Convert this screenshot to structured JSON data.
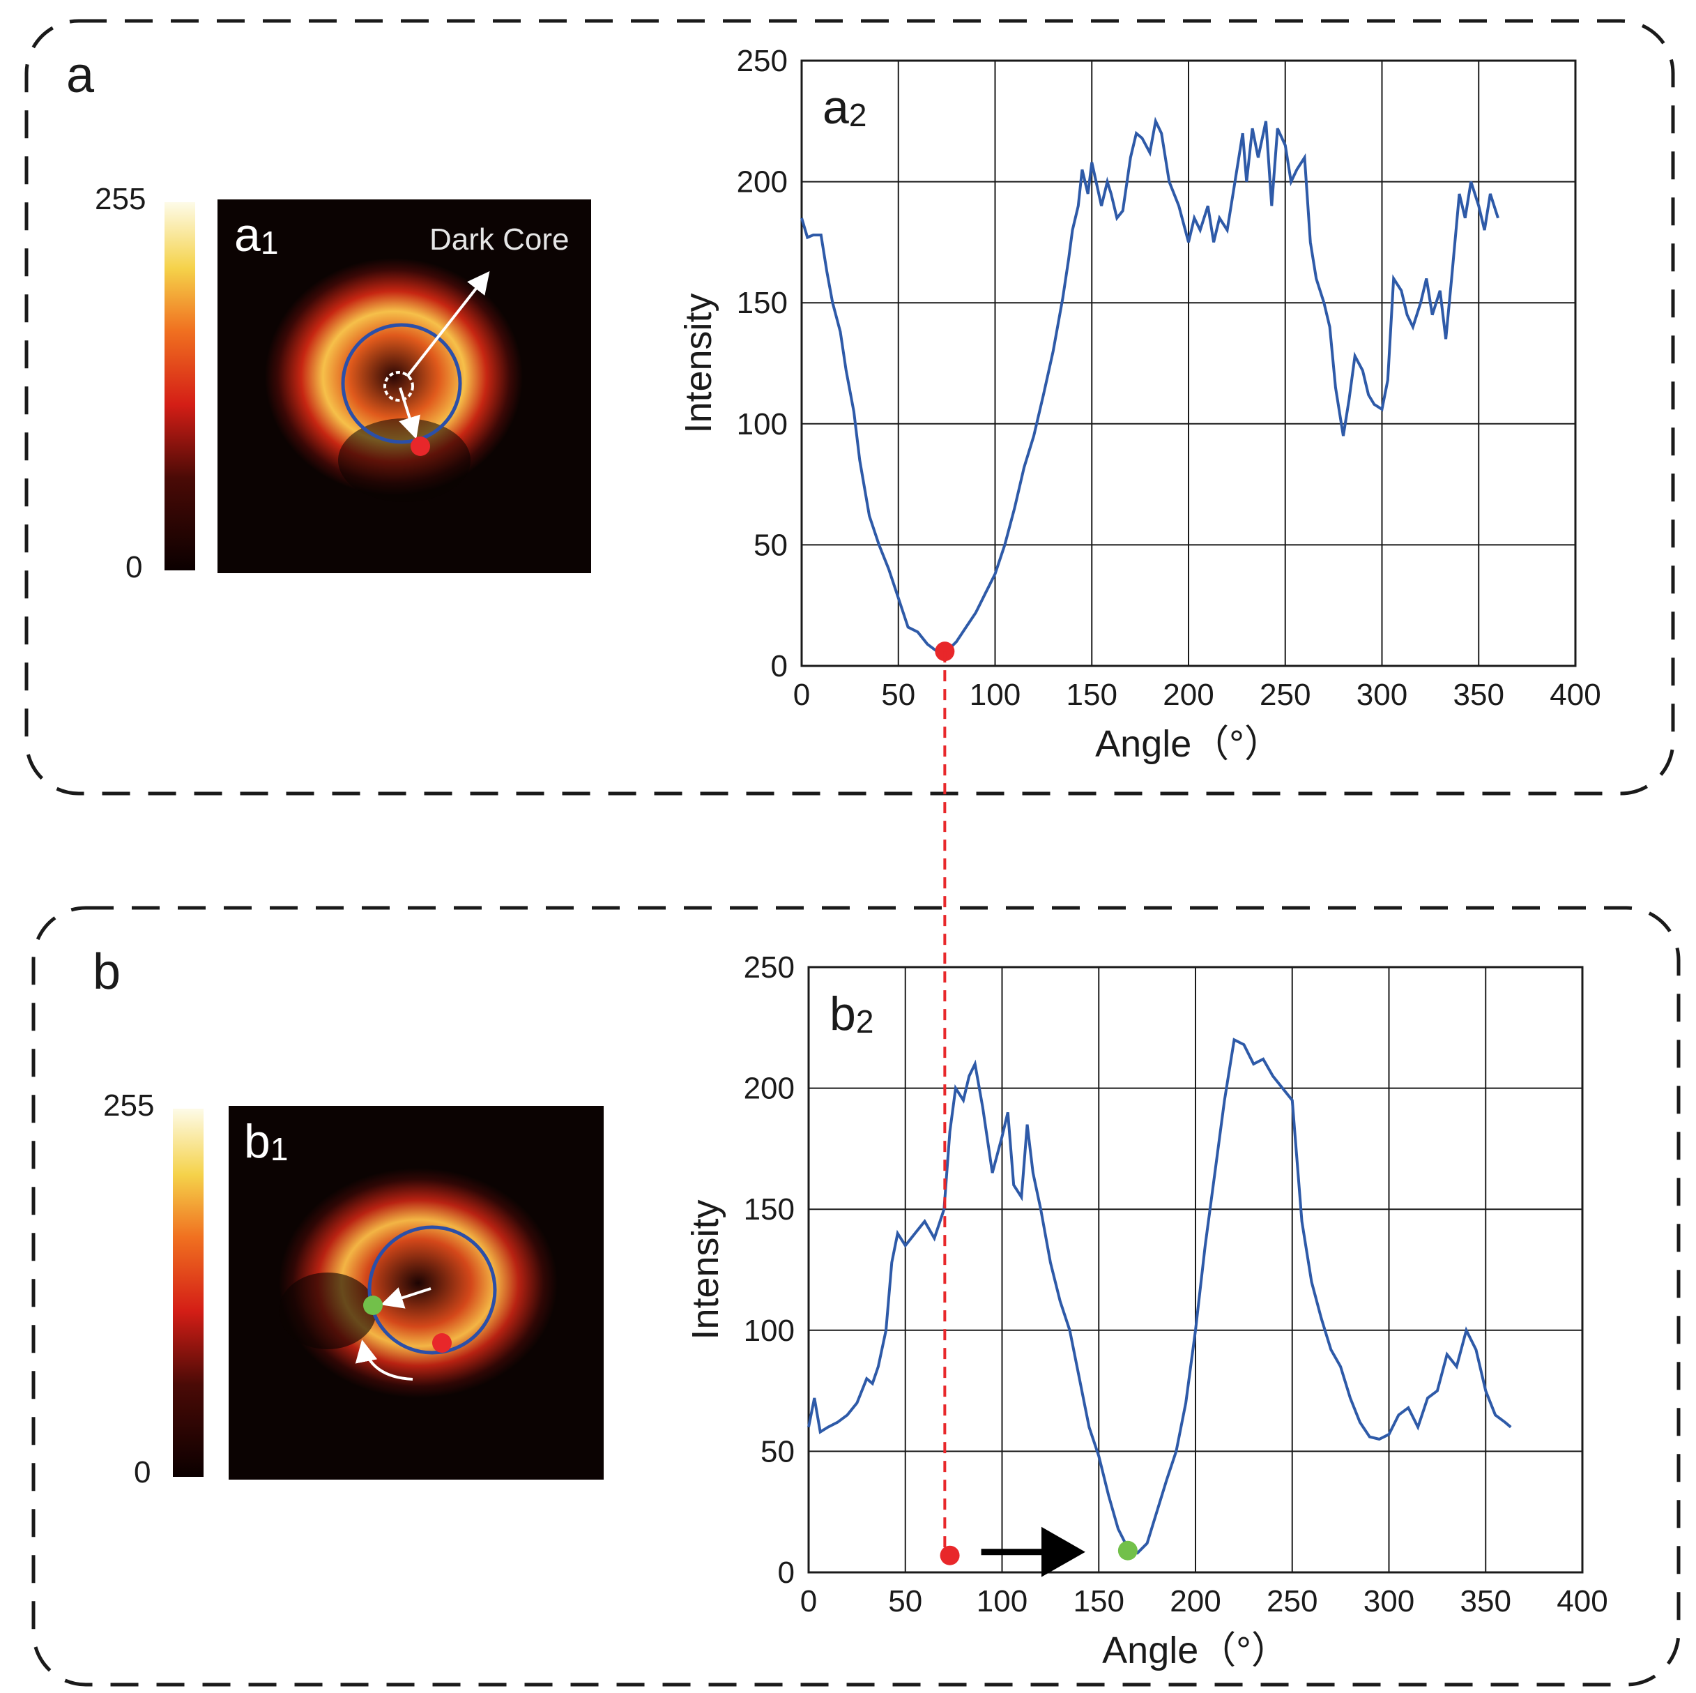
{
  "panels": {
    "a": {
      "label": "a",
      "image_label": "a",
      "image_index": "1",
      "plot_label": "a",
      "plot_index": "2",
      "colorbar": {
        "max_label": "255",
        "min_label": "0"
      },
      "annotation": "Dark Core"
    },
    "b": {
      "label": "b",
      "image_label": "b",
      "image_index": "1",
      "plot_label": "b",
      "plot_index": "2",
      "colorbar": {
        "max_label": "255",
        "min_label": "0"
      }
    }
  },
  "colors": {
    "line": "#2e5aa8",
    "red_marker": "#e8272a",
    "green_marker": "#72c04a",
    "guide": "#e8272a",
    "ring": "#2b4fa8",
    "grid": "#1a1a1a",
    "box": "#1a1a1a"
  },
  "chart_data": [
    {
      "id": "a2",
      "type": "line",
      "title": "",
      "xlabel": "Angle（°）",
      "ylabel": "Intensity",
      "xlim": [
        0,
        400
      ],
      "ylim": [
        0,
        250
      ],
      "xticks": [
        0,
        50,
        100,
        150,
        200,
        250,
        300,
        350,
        400
      ],
      "yticks": [
        0,
        50,
        100,
        150,
        200,
        250
      ],
      "grid": true,
      "series": [
        {
          "name": "Intensity",
          "x": [
            0,
            3,
            6,
            10,
            13,
            16,
            20,
            23,
            27,
            30,
            35,
            40,
            45,
            50,
            55,
            60,
            65,
            70,
            72,
            75,
            80,
            85,
            90,
            95,
            100,
            105,
            110,
            115,
            120,
            125,
            130,
            135,
            138,
            140,
            143,
            145,
            148,
            150,
            155,
            158,
            160,
            163,
            166,
            170,
            173,
            176,
            180,
            183,
            186,
            190,
            195,
            200,
            203,
            206,
            210,
            213,
            216,
            220,
            225,
            228,
            230,
            233,
            236,
            240,
            243,
            246,
            250,
            253,
            256,
            260,
            263,
            266,
            270,
            273,
            276,
            280,
            283,
            286,
            290,
            293,
            296,
            300,
            303,
            306,
            310,
            313,
            316,
            320,
            323,
            326,
            330,
            333,
            336,
            340,
            343,
            346,
            350,
            353,
            356,
            360
          ],
          "values": [
            185,
            177,
            178,
            178,
            163,
            150,
            138,
            122,
            105,
            85,
            62,
            50,
            40,
            28,
            16,
            14,
            9,
            6,
            5,
            6,
            10,
            16,
            22,
            30,
            38,
            50,
            65,
            82,
            95,
            112,
            130,
            152,
            168,
            180,
            190,
            205,
            195,
            208,
            190,
            200,
            195,
            185,
            188,
            210,
            220,
            218,
            212,
            225,
            220,
            200,
            190,
            175,
            185,
            180,
            190,
            175,
            185,
            180,
            205,
            220,
            200,
            222,
            210,
            225,
            190,
            222,
            215,
            200,
            205,
            210,
            175,
            160,
            150,
            140,
            115,
            95,
            110,
            128,
            122,
            112,
            108,
            106,
            118,
            160,
            155,
            145,
            140,
            150,
            160,
            145,
            155,
            135,
            160,
            195,
            185,
            200,
            190,
            180,
            195,
            185
          ]
        }
      ],
      "markers": [
        {
          "x": 74,
          "y": 6,
          "color": "red"
        }
      ]
    },
    {
      "id": "b2",
      "type": "line",
      "title": "",
      "xlabel": "Angle（°）",
      "ylabel": "Intensity",
      "xlim": [
        0,
        400
      ],
      "ylim": [
        0,
        250
      ],
      "xticks": [
        0,
        50,
        100,
        150,
        200,
        250,
        300,
        350,
        400
      ],
      "yticks": [
        0,
        50,
        100,
        150,
        200,
        250
      ],
      "grid": true,
      "series": [
        {
          "name": "Intensity",
          "x": [
            0,
            3,
            6,
            10,
            15,
            20,
            25,
            30,
            33,
            36,
            40,
            43,
            46,
            50,
            55,
            60,
            65,
            70,
            73,
            76,
            80,
            83,
            86,
            90,
            95,
            100,
            103,
            106,
            110,
            113,
            116,
            120,
            125,
            130,
            135,
            140,
            145,
            150,
            155,
            160,
            165,
            170,
            175,
            180,
            185,
            190,
            195,
            200,
            205,
            210,
            215,
            220,
            225,
            230,
            235,
            240,
            245,
            250,
            255,
            260,
            265,
            270,
            275,
            280,
            285,
            290,
            295,
            300,
            305,
            310,
            315,
            320,
            325,
            330,
            335,
            340,
            345,
            350,
            355,
            360,
            363
          ],
          "values": [
            60,
            72,
            58,
            60,
            62,
            65,
            70,
            80,
            78,
            85,
            100,
            128,
            140,
            135,
            140,
            145,
            138,
            150,
            182,
            200,
            195,
            205,
            210,
            192,
            165,
            180,
            190,
            160,
            155,
            185,
            165,
            150,
            128,
            112,
            100,
            80,
            60,
            48,
            32,
            18,
            10,
            8,
            12,
            25,
            38,
            50,
            70,
            100,
            135,
            165,
            195,
            220,
            218,
            210,
            212,
            205,
            200,
            195,
            145,
            120,
            105,
            92,
            85,
            72,
            62,
            56,
            55,
            57,
            65,
            68,
            60,
            72,
            75,
            90,
            85,
            100,
            92,
            75,
            65,
            62,
            60
          ]
        }
      ],
      "markers": [
        {
          "x": 73,
          "y": 7,
          "color": "red"
        },
        {
          "x": 165,
          "y": 9,
          "color": "green"
        }
      ]
    }
  ]
}
